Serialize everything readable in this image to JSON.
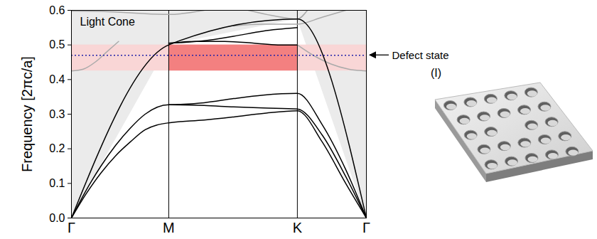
{
  "chart_data": {
    "type": "line",
    "ylabel": "Frequency [2πc/a]",
    "xlim": [
      0,
      1
    ],
    "xticks": [
      {
        "value": 0,
        "label": "Γ"
      },
      {
        "value": 0.33,
        "label": "M"
      },
      {
        "value": 0.766,
        "label": "K"
      },
      {
        "value": 1,
        "label": "Γ"
      }
    ],
    "ylim": [
      0,
      0.6
    ],
    "yticks": [
      {
        "value": 0,
        "label": "0.0"
      },
      {
        "value": 0.1,
        "label": "0.1"
      },
      {
        "value": 0.2,
        "label": "0.2"
      },
      {
        "value": 0.3,
        "label": "0.3"
      },
      {
        "value": 0.4,
        "label": "0.4"
      },
      {
        "value": 0.5,
        "label": "0.5"
      },
      {
        "value": 0.6,
        "label": "0.6"
      }
    ],
    "grid": "x",
    "light_cone": {
      "label": "Light Cone",
      "color": "#ebebeb",
      "x": [
        0,
        0.33,
        0.766,
        1
      ],
      "y": [
        0,
        0.5,
        0.575,
        0
      ]
    },
    "band_gap": {
      "ylim": [
        0.425,
        0.5
      ],
      "color": "#f9d6d6",
      "guided": {
        "x": [
          0.33,
          0.766
        ],
        "color": "#f38080"
      }
    },
    "defect": {
      "label": "Defect state",
      "y": 0.47,
      "color": "#2222aa",
      "line_style": "dotted"
    },
    "inset_label": "(I)",
    "bands": [
      {
        "color": "#000000",
        "line_style": "solid",
        "x": [
          0,
          0.05,
          0.1,
          0.15,
          0.2,
          0.25,
          0.33,
          0.45,
          0.55,
          0.65,
          0.766,
          0.85,
          0.93,
          1
        ],
        "y": [
          0,
          0.07,
          0.13,
          0.18,
          0.22,
          0.255,
          0.275,
          0.283,
          0.292,
          0.302,
          0.31,
          0.22,
          0.1,
          0
        ]
      },
      {
        "color": "#000000",
        "line_style": "solid",
        "x": [
          0,
          0.05,
          0.1,
          0.15,
          0.2,
          0.25,
          0.33,
          0.45,
          0.55,
          0.65,
          0.766,
          0.85,
          0.93,
          1
        ],
        "y": [
          0,
          0.08,
          0.15,
          0.21,
          0.26,
          0.3,
          0.327,
          0.325,
          0.321,
          0.318,
          0.315,
          0.24,
          0.12,
          0
        ]
      },
      {
        "color": "#000000",
        "line_style": "solid",
        "x": [
          0.33,
          0.45,
          0.55,
          0.65,
          0.766,
          0.85,
          0.93,
          1
        ],
        "y": [
          0.327,
          0.333,
          0.345,
          0.355,
          0.36,
          0.27,
          0.14,
          0
        ]
      },
      {
        "color": "#000000",
        "line_style": "solid",
        "x": [
          0,
          0.33,
          0.766,
          1
        ],
        "y": [
          0,
          0.5,
          0.575,
          0
        ]
      },
      {
        "color": "#000000",
        "line_style": "solid",
        "x": [
          0.33,
          0.45,
          0.55,
          0.65,
          0.766
        ],
        "y": [
          0.505,
          0.512,
          0.525,
          0.54,
          0.55
        ]
      },
      {
        "color": "#000000",
        "line_style": "solid",
        "x": [
          0.33,
          0.42,
          0.52,
          0.62,
          0.7,
          0.766
        ],
        "y": [
          0.505,
          0.51,
          0.51,
          0.505,
          0.5,
          0.5
        ]
      },
      {
        "color": "#aaaaaa",
        "line_style": "solid",
        "x": [
          0.766,
          0.82,
          0.88,
          0.94,
          1
        ],
        "y": [
          0.5,
          0.47,
          0.445,
          0.43,
          0.425
        ]
      },
      {
        "color": "#aaaaaa",
        "line_style": "solid",
        "x": [
          0,
          0.04,
          0.08,
          0.12,
          0.16
        ],
        "y": [
          0.425,
          0.43,
          0.45,
          0.48,
          0.51
        ]
      },
      {
        "color": "#aaaaaa",
        "line_style": "solid",
        "x": [
          0,
          0.1,
          0.2,
          0.33,
          0.45
        ],
        "y": [
          0.598,
          0.597,
          0.593,
          0.588,
          0.6
        ]
      },
      {
        "color": "#aaaaaa",
        "line_style": "solid",
        "x": [
          0.55,
          0.65,
          0.766,
          0.85,
          0.93
        ],
        "y": [
          0.555,
          0.56,
          0.56,
          0.58,
          0.6
        ]
      },
      {
        "color": "#aaaaaa",
        "line_style": "solid",
        "x": [
          0.6,
          0.68,
          0.766,
          0.8
        ],
        "y": [
          0.6,
          0.585,
          0.575,
          0.6
        ]
      }
    ]
  }
}
